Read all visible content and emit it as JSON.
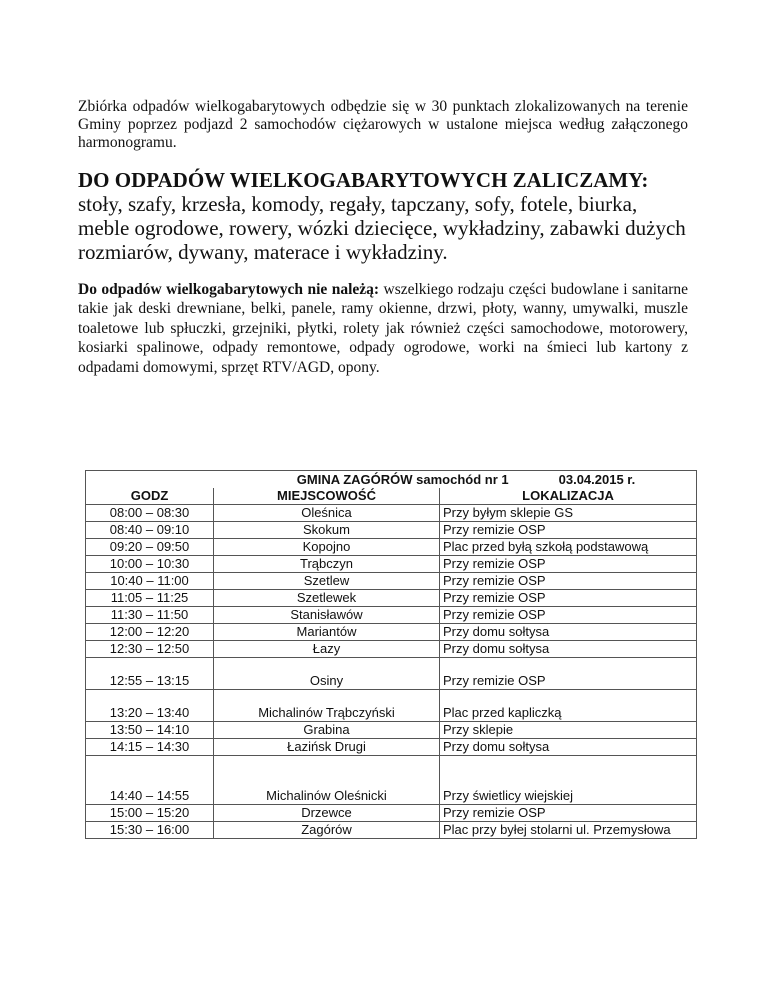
{
  "intro": "Zbiórka odpadów wielkogabarytowych odbędzie się w 30 punktach zlokalizowanych na terenie Gminy poprzez podjazd  2 samochodów ciężarowych w ustalone miejsca według załączonego harmonogramu.",
  "included": {
    "heading": "DO ODPADÓW WIELKOGABARYTOWYCH ZALICZAMY:",
    "text": "stoły, szafy, krzesła, komody, regały, tapczany, sofy, fotele, biurka, meble ogrodowe, rowery, wózki dziecięce, wykładziny, zabawki dużych rozmiarów, dywany, materace i wykładziny."
  },
  "excluded": {
    "lead": "Do odpadów wielkogabarytowych nie należą:",
    "text": " wszelkiego rodzaju części budowlane i sanitarne takie jak deski drewniane, belki, panele, ramy okienne, drzwi, płoty, wanny, umywalki, muszle toaletowe lub spłuczki, grzejniki, płytki, rolety jak również części samochodowe, motorowery, kosiarki spalinowe, odpady remontowe, odpady ogrodowe, worki na śmieci lub kartony z odpadami domowymi, sprzęt RTV/AGD, opony."
  },
  "schedule": {
    "title": "GMINA  ZAGÓRÓW samochód nr 1",
    "date": "03.04.2015 r.",
    "headers": [
      "GODZ",
      "MIEJSCOWOŚĆ",
      "LOKALIZACJA"
    ],
    "rows": [
      [
        "08:00 – 08:30",
        "Oleśnica",
        "Przy byłym sklepie GS"
      ],
      [
        "08:40 – 09:10",
        "Skokum",
        "Przy remizie OSP"
      ],
      [
        "09:20 – 09:50",
        "Kopojno",
        "Plac przed byłą szkołą podstawową"
      ],
      [
        "10:00 – 10:30",
        "Trąbczyn",
        "Przy remizie OSP"
      ],
      [
        "10:40 – 11:00",
        "Szetlew",
        "Przy remizie OSP"
      ],
      [
        "11:05 – 11:25",
        "Szetlewek",
        "Przy remizie OSP"
      ],
      [
        "11:30 – 11:50",
        "Stanisławów",
        "Przy remizie OSP"
      ],
      [
        "12:00 – 12:20",
        "Mariantów",
        "Przy domu sołtysa"
      ],
      [
        "12:30 – 12:50",
        "Łazy",
        "Przy domu sołtysa"
      ],
      [
        "12:55 – 13:15",
        "Osiny",
        "Przy remizie OSP"
      ],
      [
        "13:20 – 13:40",
        "Michalinów Trąbczyński",
        "Plac przed kapliczką"
      ],
      [
        "13:50 – 14:10",
        "Grabina",
        "Przy sklepie"
      ],
      [
        "14:15 – 14:30",
        "Łazińsk Drugi",
        "Przy domu sołtysa"
      ],
      [
        "14:40 – 14:55",
        "Michalinów Oleśnicki",
        "Przy świetlicy wiejskiej"
      ],
      [
        "15:00 – 15:20",
        "Drzewce",
        "Przy remizie OSP"
      ],
      [
        "15:30 – 16:00",
        "Zagórów",
        "Plac przy byłej stolarni ul. Przemysłowa"
      ]
    ]
  }
}
